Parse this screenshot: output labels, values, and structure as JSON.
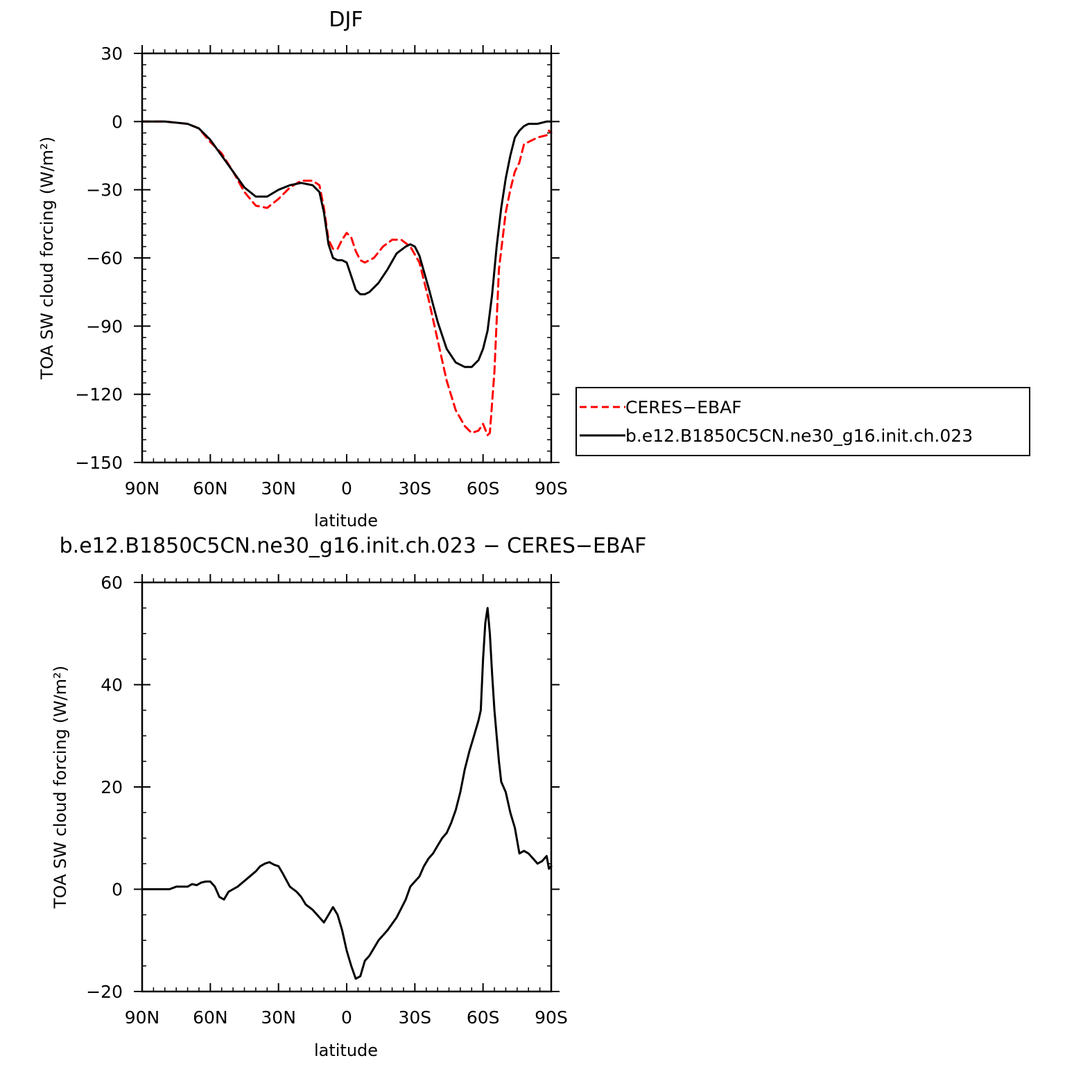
{
  "chart_data": [
    {
      "type": "line",
      "title": "DJF",
      "xlabel": "latitude",
      "ylabel": "TOA SW cloud forcing (W/m²)",
      "xlim": [
        90,
        -90
      ],
      "ylim": [
        -150,
        30
      ],
      "xticks": [
        90,
        60,
        30,
        0,
        -30,
        -60,
        -90
      ],
      "xtick_labels": [
        "90N",
        "60N",
        "30N",
        "0",
        "30S",
        "60S",
        "90S"
      ],
      "yticks": [
        30,
        0,
        -30,
        -60,
        -90,
        -120,
        -150
      ],
      "ytick_labels": [
        "30",
        "0",
        "−30",
        "−60",
        "−90",
        "−120",
        "−150"
      ],
      "legend_position": "right",
      "series": [
        {
          "name": "CERES−EBAF",
          "color": "#ff0000",
          "dash": "dashed",
          "x": [
            90,
            80,
            70,
            65,
            60,
            55,
            50,
            45,
            40,
            35,
            30,
            25,
            20,
            15,
            12,
            10,
            8,
            6,
            4,
            2,
            0,
            -2,
            -4,
            -6,
            -8,
            -12,
            -16,
            -20,
            -24,
            -28,
            -32,
            -36,
            -40,
            -44,
            -48,
            -52,
            -55,
            -58,
            -60,
            -62,
            -63,
            -65,
            -67,
            -70,
            -72,
            -74,
            -76,
            -78,
            -80,
            -84,
            -88,
            -89,
            -90
          ],
          "y": [
            0,
            0,
            -1,
            -3,
            -9,
            -14,
            -22,
            -31,
            -37,
            -38,
            -34,
            -29,
            -26,
            -26,
            -28,
            -38,
            -52,
            -56,
            -56,
            -52,
            -49,
            -51,
            -57,
            -61,
            -62,
            -60,
            -55,
            -52,
            -52,
            -55,
            -62,
            -78,
            -96,
            -114,
            -127,
            -134,
            -137,
            -136,
            -133,
            -138,
            -137,
            -110,
            -65,
            -40,
            -30,
            -22,
            -18,
            -10,
            -9,
            -7,
            -6,
            -4,
            -5
          ]
        },
        {
          "name": "b.e12.B1850C5CN.ne30_g16.init.ch.023",
          "color": "#000000",
          "dash": "solid",
          "x": [
            90,
            80,
            70,
            65,
            60,
            55,
            50,
            45,
            40,
            35,
            30,
            25,
            20,
            15,
            12,
            10,
            8,
            6,
            4,
            2,
            0,
            -2,
            -4,
            -6,
            -8,
            -10,
            -14,
            -18,
            -22,
            -26,
            -28,
            -30,
            -32,
            -36,
            -40,
            -44,
            -48,
            -52,
            -55,
            -58,
            -60,
            -62,
            -64,
            -66,
            -68,
            -70,
            -72,
            -74,
            -76,
            -78,
            -80,
            -84,
            -88,
            -90
          ],
          "y": [
            0,
            0,
            -1,
            -3,
            -8,
            -15,
            -22,
            -29,
            -33,
            -33,
            -30,
            -28,
            -27,
            -28,
            -31,
            -40,
            -54,
            -60,
            -61,
            -61,
            -62,
            -68,
            -74,
            -76,
            -76,
            -75,
            -71,
            -65,
            -58,
            -55,
            -54,
            -55,
            -59,
            -73,
            -88,
            -100,
            -106,
            -108,
            -108,
            -105,
            -100,
            -92,
            -76,
            -55,
            -38,
            -25,
            -15,
            -7,
            -4,
            -2,
            -1,
            -1,
            0,
            0
          ]
        }
      ]
    },
    {
      "type": "line",
      "title": "b.e12.B1850C5CN.ne30_g16.init.ch.023 − CERES−EBAF",
      "xlabel": "latitude",
      "ylabel": "TOA SW cloud forcing (W/m²)",
      "xlim": [
        90,
        -90
      ],
      "ylim": [
        -20,
        60
      ],
      "xticks": [
        90,
        60,
        30,
        0,
        -30,
        -60,
        -90
      ],
      "xtick_labels": [
        "90N",
        "60N",
        "30N",
        "0",
        "30S",
        "60S",
        "90S"
      ],
      "yticks": [
        60,
        40,
        20,
        0,
        -20
      ],
      "ytick_labels": [
        "60",
        "40",
        "20",
        "0",
        "−20"
      ],
      "series": [
        {
          "color": "#000000",
          "dash": "solid",
          "x": [
            90,
            80,
            78,
            75,
            70,
            68,
            66,
            64,
            62,
            60,
            58,
            56,
            54,
            52,
            50,
            48,
            44,
            40,
            38,
            36,
            34,
            32,
            30,
            28,
            25,
            22,
            20,
            18,
            15,
            12,
            10,
            8,
            6,
            4,
            2,
            0,
            -2,
            -4,
            -6,
            -8,
            -10,
            -14,
            -18,
            -22,
            -26,
            -28,
            -30,
            -32,
            -34,
            -36,
            -38,
            -40,
            -42,
            -44,
            -46,
            -48,
            -50,
            -52,
            -54,
            -56,
            -58,
            -59,
            -60,
            -61,
            -62,
            -63,
            -64,
            -65,
            -66,
            -67,
            -68,
            -70,
            -72,
            -74,
            -76,
            -78,
            -80,
            -82,
            -84,
            -86,
            -88,
            -89,
            -90
          ],
          "y": [
            0,
            0,
            0,
            0.5,
            0.5,
            1,
            0.8,
            1.3,
            1.5,
            1.5,
            0.5,
            -1.5,
            -2,
            -0.5,
            0,
            0.5,
            2,
            3.5,
            4.5,
            5,
            5.3,
            4.8,
            4.5,
            3,
            0.5,
            -0.5,
            -1.5,
            -3,
            -4,
            -5.5,
            -6.5,
            -5,
            -3.5,
            -5,
            -8,
            -12,
            -15,
            -17.5,
            -17,
            -14,
            -13,
            -10,
            -8,
            -5.5,
            -2,
            0.5,
            1.5,
            2.5,
            4.5,
            6,
            7,
            8.5,
            10,
            11,
            13,
            15.5,
            19,
            23.5,
            27,
            30,
            33,
            35,
            45,
            52,
            55,
            50,
            42,
            35,
            30,
            25,
            21,
            19,
            15,
            12,
            7,
            7.5,
            7,
            6,
            5,
            5.5,
            6.5,
            4,
            4.5
          ]
        }
      ]
    }
  ]
}
